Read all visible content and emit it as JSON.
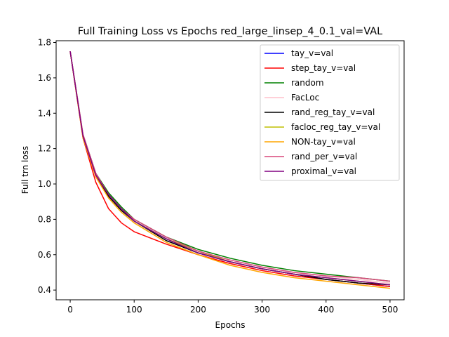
{
  "chart_data": {
    "type": "line",
    "title": "Full Training Loss vs Epochs red_large_linsep_4_0.1_val=VAL",
    "xlabel": "Epochs",
    "ylabel": "Full trn loss",
    "xlim": [
      -22,
      522
    ],
    "ylim": [
      0.345,
      1.81
    ],
    "xticks": [
      0,
      100,
      200,
      300,
      400,
      500
    ],
    "yticks": [
      0.4,
      0.6,
      0.8,
      1.0,
      1.2,
      1.4,
      1.6,
      1.8
    ],
    "ytick_labels": [
      "0.4",
      "0.6",
      "0.8",
      "1.0",
      "1.2",
      "1.4",
      "1.6",
      "1.8"
    ],
    "grid": false,
    "legend_position": "top-right",
    "x": [
      0,
      20,
      40,
      60,
      80,
      100,
      150,
      200,
      250,
      300,
      350,
      400,
      450,
      500
    ],
    "series": [
      {
        "name": "tay_v=val",
        "color": "#0000ff",
        "values": [
          1.75,
          1.27,
          1.05,
          0.94,
          0.86,
          0.79,
          0.69,
          0.61,
          0.56,
          0.52,
          0.49,
          0.46,
          0.44,
          0.42
        ]
      },
      {
        "name": "step_tay_v=val",
        "color": "#ff0000",
        "values": [
          1.75,
          1.26,
          1.01,
          0.86,
          0.78,
          0.73,
          0.66,
          0.6,
          0.55,
          0.51,
          0.48,
          0.46,
          0.44,
          0.42
        ]
      },
      {
        "name": "random",
        "color": "#008000",
        "values": [
          1.75,
          1.28,
          1.06,
          0.95,
          0.87,
          0.8,
          0.7,
          0.63,
          0.58,
          0.54,
          0.51,
          0.49,
          0.47,
          0.45
        ]
      },
      {
        "name": "FacLoc",
        "color": "#ffc0cb",
        "values": [
          1.75,
          1.28,
          1.05,
          0.94,
          0.86,
          0.79,
          0.69,
          0.62,
          0.57,
          0.53,
          0.5,
          0.48,
          0.46,
          0.44
        ]
      },
      {
        "name": "rand_reg_tay_v=val",
        "color": "#000000",
        "values": [
          1.75,
          1.27,
          1.05,
          0.93,
          0.85,
          0.79,
          0.68,
          0.61,
          0.56,
          0.52,
          0.49,
          0.46,
          0.44,
          0.43
        ]
      },
      {
        "name": "facloc_reg_tay_v=val",
        "color": "#bfbf00",
        "values": [
          1.75,
          1.27,
          1.05,
          0.94,
          0.86,
          0.79,
          0.69,
          0.62,
          0.56,
          0.52,
          0.49,
          0.47,
          0.45,
          0.43
        ]
      },
      {
        "name": "NON-tay_v=val",
        "color": "#ffa500",
        "values": [
          1.75,
          1.26,
          1.04,
          0.92,
          0.84,
          0.78,
          0.67,
          0.6,
          0.54,
          0.5,
          0.47,
          0.45,
          0.43,
          0.41
        ]
      },
      {
        "name": "rand_per_v=val",
        "color": "#d9467a",
        "values": [
          1.75,
          1.28,
          1.06,
          0.94,
          0.86,
          0.8,
          0.7,
          0.62,
          0.57,
          0.53,
          0.5,
          0.48,
          0.47,
          0.45
        ]
      },
      {
        "name": "proximal_v=val",
        "color": "#800080",
        "values": [
          1.75,
          1.27,
          1.05,
          0.94,
          0.86,
          0.79,
          0.69,
          0.61,
          0.56,
          0.52,
          0.49,
          0.47,
          0.45,
          0.43
        ]
      }
    ]
  }
}
